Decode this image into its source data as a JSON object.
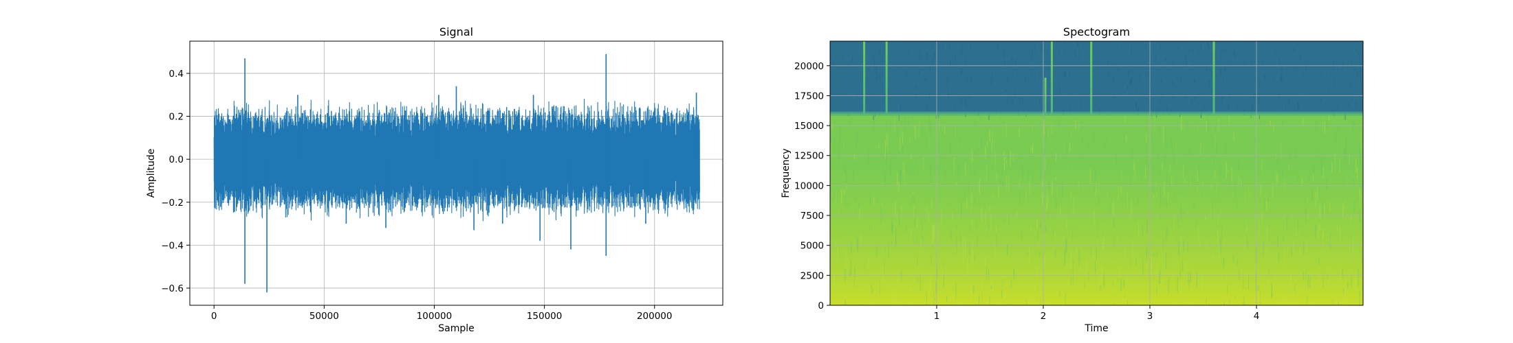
{
  "chart_data": [
    {
      "type": "line",
      "title": "Signal",
      "xlabel": "Sample",
      "ylabel": "Amplitude",
      "xlim": [
        -11000,
        231000
      ],
      "ylim": [
        -0.68,
        0.55
      ],
      "xticks": [
        0,
        50000,
        100000,
        150000,
        200000
      ],
      "xtick_labels": [
        "0",
        "50000",
        "100000",
        "150000",
        "200000"
      ],
      "yticks": [
        0.4,
        0.2,
        0.0,
        -0.2,
        -0.4,
        -0.6
      ],
      "ytick_labels": [
        "0.4",
        "0.2",
        "0.0",
        "−0.2",
        "−0.4",
        "−0.6"
      ],
      "grid": true,
      "color": "#1f77b4",
      "series": [
        {
          "x_range": [
            0,
            220500
          ],
          "typical_envelope": [
            -0.18,
            0.18
          ],
          "spikes": [
            {
              "x": 14000,
              "y": 0.47
            },
            {
              "x": 14000,
              "y": -0.58
            },
            {
              "x": 24000,
              "y": -0.62
            },
            {
              "x": 38000,
              "y": 0.3
            },
            {
              "x": 60000,
              "y": -0.3
            },
            {
              "x": 78000,
              "y": -0.32
            },
            {
              "x": 102000,
              "y": 0.3
            },
            {
              "x": 110000,
              "y": 0.34
            },
            {
              "x": 118000,
              "y": -0.33
            },
            {
              "x": 131000,
              "y": -0.3
            },
            {
              "x": 145000,
              "y": 0.3
            },
            {
              "x": 148000,
              "y": -0.38
            },
            {
              "x": 162000,
              "y": -0.42
            },
            {
              "x": 178000,
              "y": 0.49
            },
            {
              "x": 178000,
              "y": -0.45
            },
            {
              "x": 196000,
              "y": -0.3
            },
            {
              "x": 219000,
              "y": 0.31
            }
          ]
        }
      ]
    },
    {
      "type": "heatmap",
      "title": "Spectogram",
      "xlabel": "Time",
      "ylabel": "Frequency",
      "xlim": [
        0,
        5.0
      ],
      "ylim": [
        0,
        22050
      ],
      "xticks": [
        1,
        2,
        3,
        4
      ],
      "xtick_labels": [
        "1",
        "2",
        "3",
        "4"
      ],
      "yticks": [
        0,
        2500,
        5000,
        7500,
        10000,
        12500,
        15000,
        17500,
        20000
      ],
      "ytick_labels": [
        "0",
        "2500",
        "5000",
        "7500",
        "10000",
        "12500",
        "15000",
        "17500",
        "20000"
      ],
      "grid": true,
      "colormap": "viridis",
      "cutoff_frequency": 16000,
      "regions": [
        {
          "from_freq": 0,
          "to_freq": 2500,
          "color": "#c7dd2a"
        },
        {
          "from_freq": 2500,
          "to_freq": 8000,
          "color": "#a2d640"
        },
        {
          "from_freq": 8000,
          "to_freq": 16000,
          "color": "#7fcc4a"
        },
        {
          "from_freq": 16000,
          "to_freq": 22050,
          "color": "#2c6f8f"
        }
      ],
      "transients": [
        {
          "time": 0.32,
          "to_freq": 22050
        },
        {
          "time": 0.53,
          "to_freq": 22050
        },
        {
          "time": 2.02,
          "to_freq": 19000
        },
        {
          "time": 2.08,
          "to_freq": 22050
        },
        {
          "time": 2.45,
          "to_freq": 22050
        },
        {
          "time": 3.6,
          "to_freq": 22050
        }
      ]
    }
  ]
}
